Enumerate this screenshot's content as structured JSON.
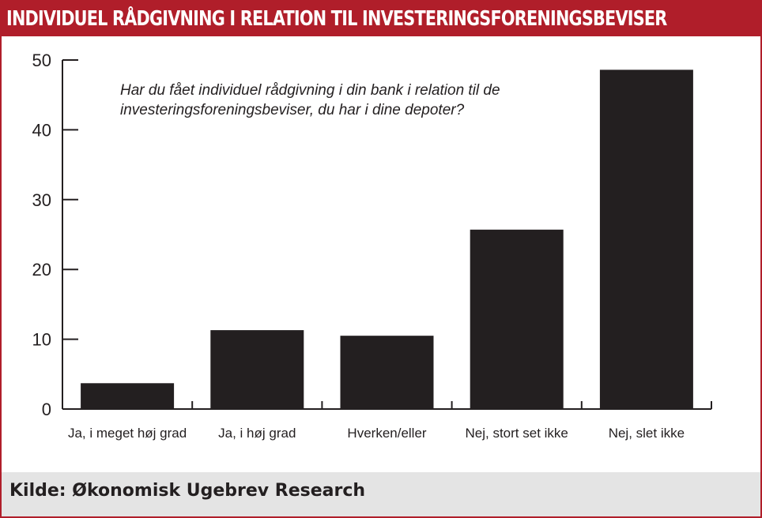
{
  "header": {
    "title": "INDIVIDUEL RÅDGIVNING I RELATION TIL INVESTERINGSFORENINGSBEVISER"
  },
  "footer": {
    "source": "Kilde: Økonomisk Ugebrev Research"
  },
  "colors": {
    "accent": "#b01e2a",
    "bar": "#231f20",
    "footer_bg": "#e4e4e4"
  },
  "chart_data": {
    "type": "bar",
    "title": "",
    "question": [
      "Har du fået individuel rådgivning i din bank i relation til de",
      "investeringsforeningsbeviser, du har i dine depoter?"
    ],
    "categories": [
      "Ja, i meget høj grad",
      "Ja, i høj grad",
      "Hverken/eller",
      "Nej, stort set ikke",
      "Nej, slet ikke"
    ],
    "values": [
      3.7,
      11.3,
      10.5,
      25.7,
      48.6
    ],
    "yticks": [
      0,
      10,
      20,
      30,
      40,
      50
    ],
    "ylim": [
      0,
      50
    ],
    "xlabel": "",
    "ylabel": "",
    "grid": false,
    "legend": "none"
  }
}
